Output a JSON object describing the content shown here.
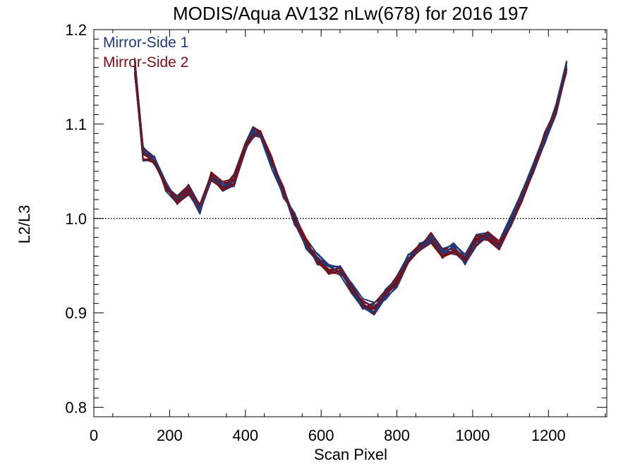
{
  "chart_data": {
    "type": "line",
    "title": "MODIS/Aqua AV132 nLw(678) for 2016 197",
    "xlabel": "Scan Pixel",
    "ylabel": "L2/L3",
    "xlim": [
      0,
      1354
    ],
    "ylim": [
      0.79,
      1.2
    ],
    "xticks": [
      "0",
      "200",
      "400",
      "600",
      "800",
      "1000",
      "1200"
    ],
    "yticks": [
      "0.8",
      "0.9",
      "1.0",
      "1.1",
      "1.2"
    ],
    "reference_line": {
      "y": 1.0,
      "style": "dotted"
    },
    "legend_position": "top-left",
    "grid": false,
    "colors": {
      "Mirror-Side 1": "#1f3a78",
      "Mirror-Side 2": "#7a0f16"
    },
    "x": [
      108,
      130,
      160,
      190,
      220,
      250,
      280,
      310,
      340,
      370,
      400,
      420,
      440,
      470,
      500,
      530,
      560,
      590,
      620,
      650,
      680,
      710,
      740,
      770,
      800,
      830,
      860,
      890,
      920,
      950,
      980,
      1010,
      1040,
      1070,
      1100,
      1130,
      1160,
      1190,
      1220,
      1248
    ],
    "series": [
      {
        "name": "Mirror-Side 1",
        "lines": [
          [
            1.17,
            1.075,
            1.065,
            1.032,
            1.02,
            1.026,
            1.008,
            1.044,
            1.039,
            1.036,
            1.074,
            1.088,
            1.086,
            1.052,
            1.025,
            1.003,
            0.977,
            0.951,
            0.95,
            0.949,
            0.925,
            0.906,
            0.898,
            0.916,
            0.935,
            0.957,
            0.973,
            0.98,
            0.968,
            0.972,
            0.951,
            0.979,
            0.978,
            0.967,
            0.992,
            1.02,
            1.052,
            1.083,
            1.115,
            1.158
          ],
          [
            1.155,
            1.071,
            1.058,
            1.034,
            1.018,
            1.036,
            1.014,
            1.044,
            1.029,
            1.035,
            1.071,
            1.093,
            1.09,
            1.056,
            1.034,
            0.996,
            0.976,
            0.955,
            0.945,
            0.941,
            0.932,
            0.905,
            0.911,
            0.919,
            0.931,
            0.953,
            0.974,
            0.975,
            0.965,
            0.962,
            0.96,
            0.976,
            0.986,
            0.976,
            1.002,
            1.028,
            1.058,
            1.089,
            1.11,
            1.162
          ],
          [
            1.16,
            1.073,
            1.057,
            1.038,
            1.02,
            1.029,
            1.007,
            1.048,
            1.032,
            1.047,
            1.08,
            1.097,
            1.092,
            1.065,
            1.024,
            1.002,
            0.97,
            0.963,
            0.949,
            0.944,
            0.924,
            0.913,
            0.906,
            0.916,
            0.939,
            0.961,
            0.969,
            0.982,
            0.96,
            0.972,
            0.962,
            0.983,
            0.982,
            0.972,
            1.0,
            1.025,
            1.051,
            1.091,
            1.114,
            1.16
          ],
          [
            1.163,
            1.061,
            1.066,
            1.029,
            1.016,
            1.025,
            1.013,
            1.046,
            1.03,
            1.041,
            1.072,
            1.09,
            1.089,
            1.057,
            1.025,
            1.004,
            0.973,
            0.959,
            0.946,
            0.94,
            0.921,
            0.91,
            0.901,
            0.916,
            0.936,
            0.962,
            0.966,
            0.975,
            0.964,
            0.969,
            0.952,
            0.971,
            0.981,
            0.974,
            0.997,
            1.021,
            1.048,
            1.08,
            1.11,
            1.157
          ],
          [
            1.158,
            1.07,
            1.064,
            1.038,
            1.019,
            1.033,
            1.005,
            1.048,
            1.036,
            1.034,
            1.074,
            1.092,
            1.087,
            1.063,
            1.022,
            1.006,
            0.975,
            0.959,
            0.941,
            0.95,
            0.931,
            0.911,
            0.908,
            0.914,
            0.929,
            0.956,
            0.971,
            0.983,
            0.966,
            0.973,
            0.962,
            0.981,
            0.98,
            0.967,
            0.992,
            1.018,
            1.057,
            1.086,
            1.118,
            1.164
          ],
          [
            1.152,
            1.075,
            1.061,
            1.033,
            1.021,
            1.025,
            1.014,
            1.044,
            1.037,
            1.036,
            1.074,
            1.085,
            1.092,
            1.062,
            1.029,
            0.993,
            0.979,
            0.962,
            0.951,
            0.942,
            0.932,
            0.915,
            0.911,
            0.916,
            0.927,
            0.953,
            0.967,
            0.977,
            0.965,
            0.974,
            0.959,
            0.983,
            0.985,
            0.972,
            0.996,
            1.029,
            1.051,
            1.085,
            1.121,
            1.166
          ],
          [
            1.166,
            1.07,
            1.065,
            1.039,
            1.015,
            1.027,
            1.008,
            1.045,
            1.034,
            1.039,
            1.074,
            1.092,
            1.086,
            1.064,
            1.031,
            0.998,
            0.969,
            0.963,
            0.951,
            0.948,
            0.921,
            0.905,
            0.901,
            0.918,
            0.936,
            0.961,
            0.968,
            0.977,
            0.967,
            0.964,
            0.962,
            0.975,
            0.981,
            0.969,
            0.994,
            1.018,
            1.049,
            1.089,
            1.111,
            1.166
          ],
          [
            1.159,
            1.061,
            1.062,
            1.032,
            1.023,
            1.033,
            1.01,
            1.042,
            1.033,
            1.034,
            1.079,
            1.095,
            1.088,
            1.059,
            1.026,
            1.005,
            0.968,
            0.955,
            0.95,
            0.943,
            0.927,
            0.906,
            0.901,
            0.925,
            0.936,
            0.958,
            0.968,
            0.98,
            0.963,
            0.97,
            0.952,
            0.975,
            0.983,
            0.97,
            1.0,
            1.025,
            1.057,
            1.079,
            1.115,
            1.155
          ]
        ]
      },
      {
        "name": "Mirror-Side 2",
        "lines": [
          [
            1.162,
            1.076,
            1.06,
            1.034,
            1.023,
            1.032,
            1.007,
            1.041,
            1.032,
            1.037,
            1.075,
            1.092,
            1.093,
            1.057,
            1.032,
            1.001,
            0.972,
            0.958,
            0.95,
            0.948,
            0.927,
            0.907,
            0.905,
            0.92,
            0.93,
            0.953,
            0.97,
            0.983,
            0.963,
            0.965,
            0.953,
            0.982,
            0.982,
            0.976,
            0.999,
            1.023,
            1.053,
            1.08,
            1.12,
            1.167
          ],
          [
            1.153,
            1.068,
            1.061,
            1.034,
            1.024,
            1.035,
            1.008,
            1.044,
            1.039,
            1.042,
            1.074,
            1.087,
            1.092,
            1.06,
            1.034,
            0.995,
            0.97,
            0.959,
            0.949,
            0.949,
            0.924,
            0.904,
            0.91,
            0.924,
            0.933,
            0.961,
            0.972,
            0.975,
            0.961,
            0.965,
            0.958,
            0.977,
            0.985,
            0.976,
            0.996,
            1.018,
            1.049,
            1.088,
            1.113,
            1.158
          ],
          [
            1.155,
            1.063,
            1.059,
            1.039,
            1.018,
            1.028,
            1.005,
            1.049,
            1.033,
            1.045,
            1.08,
            1.089,
            1.09,
            1.059,
            1.029,
            1.002,
            0.971,
            0.953,
            0.944,
            0.948,
            0.931,
            0.905,
            0.904,
            0.922,
            0.939,
            0.958,
            0.966,
            0.979,
            0.958,
            0.967,
            0.956,
            0.978,
            0.977,
            0.967,
            0.996,
            1.021,
            1.055,
            1.086,
            1.114,
            1.159
          ],
          [
            1.163,
            1.072,
            1.059,
            1.037,
            1.016,
            1.031,
            1.012,
            1.045,
            1.033,
            1.045,
            1.077,
            1.088,
            1.086,
            1.063,
            1.029,
            0.996,
            0.97,
            0.954,
            0.943,
            0.948,
            0.927,
            0.908,
            0.901,
            0.924,
            0.932,
            0.956,
            0.967,
            0.98,
            0.963,
            0.97,
            0.957,
            0.971,
            0.985,
            0.973,
            0.998,
            1.018,
            1.055,
            1.08,
            1.114,
            1.158
          ],
          [
            1.162,
            1.075,
            1.064,
            1.03,
            1.023,
            1.027,
            1.008,
            1.04,
            1.032,
            1.042,
            1.079,
            1.096,
            1.092,
            1.064,
            1.026,
            1.003,
            0.976,
            0.956,
            0.945,
            0.945,
            0.928,
            0.91,
            0.899,
            0.922,
            0.937,
            0.956,
            0.966,
            0.98,
            0.961,
            0.965,
            0.953,
            0.981,
            0.979,
            0.967,
            0.992,
            1.025,
            1.051,
            1.079,
            1.117,
            1.166
          ],
          [
            1.168,
            1.069,
            1.061,
            1.035,
            1.017,
            1.026,
            1.008,
            1.049,
            1.039,
            1.034,
            1.076,
            1.093,
            1.092,
            1.061,
            1.025,
            1.003,
            0.979,
            0.954,
            0.942,
            0.942,
            0.929,
            0.908,
            0.904,
            0.918,
            0.931,
            0.954,
            0.969,
            0.985,
            0.968,
            0.967,
            0.955,
            0.978,
            0.985,
            0.969,
            1.0,
            1.026,
            1.048,
            1.09,
            1.112,
            1.159
          ],
          [
            1.155,
            1.063,
            1.062,
            1.033,
            1.016,
            1.026,
            1.014,
            1.044,
            1.03,
            1.037,
            1.076,
            1.087,
            1.092,
            1.063,
            1.025,
            1.005,
            0.975,
            0.953,
            0.946,
            0.947,
            0.922,
            0.913,
            0.905,
            0.922,
            0.938,
            0.957,
            0.971,
            0.978,
            0.959,
            0.964,
            0.954,
            0.972,
            0.986,
            0.972,
            0.999,
            1.027,
            1.055,
            1.079,
            1.112,
            1.157
          ],
          [
            1.162,
            1.063,
            1.06,
            1.032,
            1.021,
            1.032,
            1.015,
            1.047,
            1.032,
            1.036,
            1.079,
            1.088,
            1.091,
            1.06,
            1.03,
            0.997,
            0.975,
            0.957,
            0.941,
            0.945,
            0.928,
            0.909,
            0.904,
            0.92,
            0.935,
            0.955,
            0.966,
            0.974,
            0.959,
            0.966,
            0.957,
            0.982,
            0.98,
            0.972,
            0.991,
            1.018,
            1.052,
            1.091,
            1.116,
            1.16
          ]
        ]
      }
    ]
  }
}
